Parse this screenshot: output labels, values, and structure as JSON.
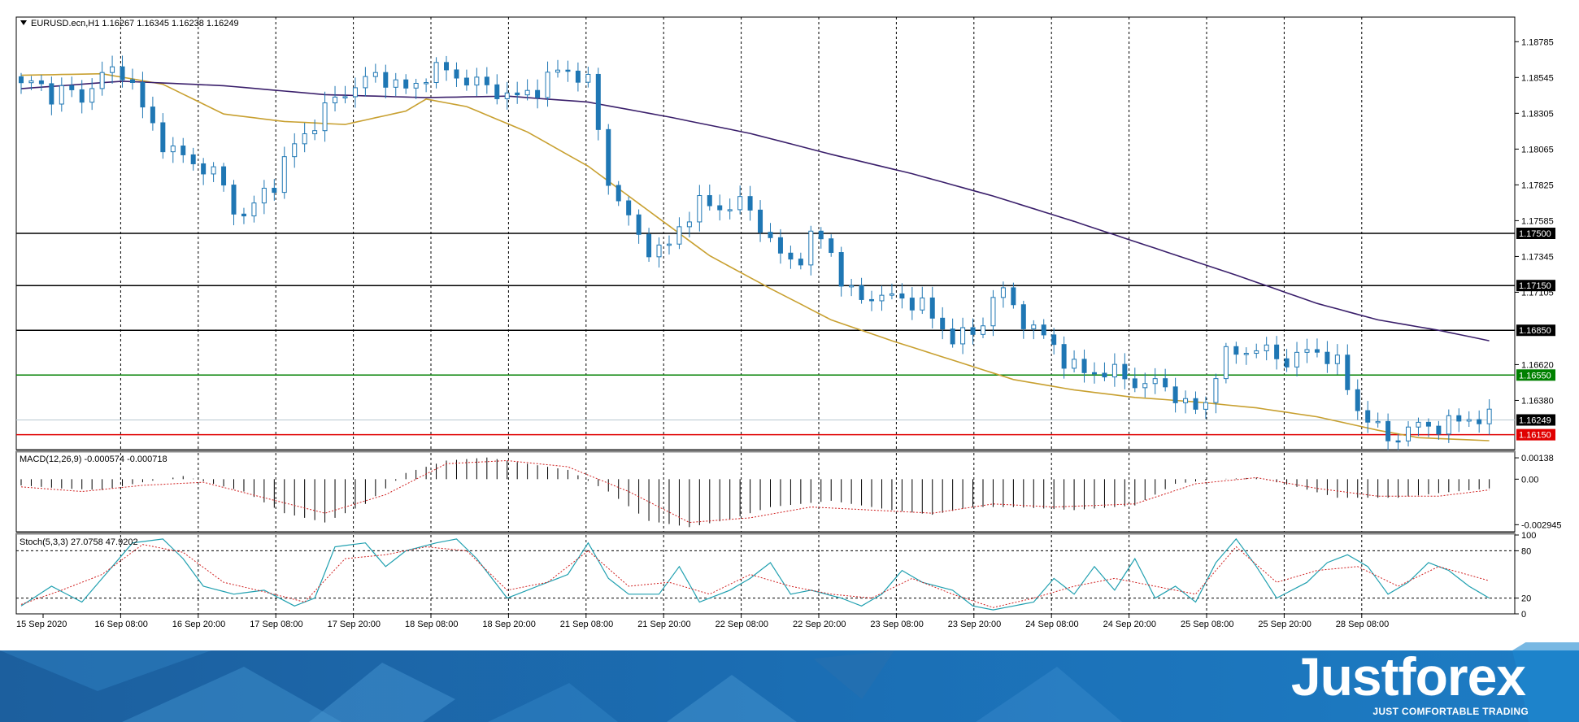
{
  "colors": {
    "bull": "#ffffff",
    "bear": "#1f77b4",
    "ma50": "#c8a030",
    "ma100": "#3a1f6b",
    "macd_hist": "#000000",
    "macd_signal": "#d02020",
    "stoch_main": "#20a0b0",
    "stoch_signal": "#d02020",
    "support_green": "#008000",
    "support_red": "#e00000",
    "brand_blue": "#1a6fb3"
  },
  "header": {
    "symbol_text": "EURUSD.ecn,H1  1.16267 1.16345 1.16238 1.16249",
    "menu_icon": "triangle-down-icon"
  },
  "macd_label": "MACD(12,26,9) -0.000574 -0.000718",
  "stoch_label": "Stoch(5,3,3) 27.0758 47.9202",
  "brand": {
    "name": "Justforex",
    "tagline": "JUST COMFORTABLE TRADING"
  },
  "chart_data": [
    {
      "type": "candlestick",
      "panel": "price",
      "ylim": [
        1.1605,
        1.1895
      ],
      "price_ticks": [
        "1.18785",
        "1.18545",
        "1.18305",
        "1.18065",
        "1.17825",
        "1.17585",
        "1.17345",
        "1.17105",
        "1.16620",
        "1.16380"
      ],
      "x_labels": [
        "15 Sep 2020",
        "16 Sep 08:00",
        "16 Sep 20:00",
        "17 Sep 08:00",
        "17 Sep 20:00",
        "18 Sep 08:00",
        "18 Sep 20:00",
        "21 Sep 08:00",
        "21 Sep 20:00",
        "22 Sep 08:00",
        "22 Sep 20:00",
        "23 Sep 08:00",
        "23 Sep 20:00",
        "24 Sep 08:00",
        "24 Sep 20:00",
        "25 Sep 08:00",
        "25 Sep 20:00",
        "28 Sep 08:00"
      ],
      "close_anchors": [
        1.1848,
        1.1852,
        1.1843,
        1.1846,
        1.184,
        1.1853,
        1.1858,
        1.186,
        1.1835,
        1.1818,
        1.1805,
        1.18,
        1.1795,
        1.179,
        1.177,
        1.176,
        1.1775,
        1.1786,
        1.1806,
        1.1817,
        1.183,
        1.184,
        1.1848,
        1.1852,
        1.1857,
        1.185,
        1.1844,
        1.1858,
        1.186,
        1.1856,
        1.1852,
        1.1848,
        1.1845,
        1.184,
        1.1845,
        1.1852,
        1.186,
        1.1858,
        1.185,
        1.179,
        1.177,
        1.175,
        1.174,
        1.1737,
        1.1755,
        1.177,
        1.1768,
        1.1768,
        1.177,
        1.1762,
        1.1745,
        1.173,
        1.1735,
        1.175,
        1.174,
        1.1712,
        1.1705,
        1.171,
        1.1706,
        1.1706,
        1.1704,
        1.169,
        1.1682,
        1.168,
        1.1685,
        1.1712,
        1.1706,
        1.169,
        1.1682,
        1.1675,
        1.166,
        1.1657,
        1.1658,
        1.1656,
        1.1652,
        1.1648,
        1.165,
        1.1643,
        1.163,
        1.1635,
        1.1665,
        1.167,
        1.1673,
        1.1671,
        1.1666,
        1.1665,
        1.1672,
        1.167,
        1.166,
        1.1635,
        1.1625,
        1.1612,
        1.1615,
        1.162,
        1.1622,
        1.162,
        1.1625,
        1.1627,
        1.1625
      ],
      "horizontal_levels": [
        {
          "value": 1.175,
          "label": "1.17500",
          "color": "#000000",
          "label_bg": "#000000"
        },
        {
          "value": 1.1715,
          "label": "1.17150",
          "color": "#000000",
          "label_bg": "#000000"
        },
        {
          "value": 1.1685,
          "label": "1.16850",
          "color": "#000000",
          "label_bg": "#000000"
        },
        {
          "value": 1.1655,
          "label": "1.16550",
          "color": "#008000",
          "label_bg": "#008000"
        },
        {
          "value": 1.16249,
          "label": "1.16249",
          "color": "#b8c8d0",
          "label_bg": "#000000"
        },
        {
          "value": 1.1615,
          "label": "1.16150",
          "color": "#e00000",
          "label_bg": "#e00000"
        }
      ],
      "ma50_anchors": [
        [
          0,
          1.1856
        ],
        [
          8,
          1.1857
        ],
        [
          14,
          1.185
        ],
        [
          20,
          1.183
        ],
        [
          26,
          1.1825
        ],
        [
          32,
          1.1823
        ],
        [
          38,
          1.1832
        ],
        [
          40,
          1.184
        ],
        [
          44,
          1.1835
        ],
        [
          50,
          1.1818
        ],
        [
          56,
          1.1795
        ],
        [
          62,
          1.1765
        ],
        [
          68,
          1.1735
        ],
        [
          74,
          1.1713
        ],
        [
          80,
          1.1692
        ],
        [
          86,
          1.1678
        ],
        [
          92,
          1.1665
        ],
        [
          98,
          1.1652
        ],
        [
          104,
          1.1645
        ],
        [
          110,
          1.164
        ],
        [
          116,
          1.1637
        ],
        [
          122,
          1.1633
        ],
        [
          128,
          1.1627
        ],
        [
          134,
          1.1618
        ],
        [
          138,
          1.1613
        ],
        [
          145,
          1.1611
        ]
      ],
      "ma100_anchors": [
        [
          0,
          1.1847
        ],
        [
          10,
          1.1852
        ],
        [
          20,
          1.1849
        ],
        [
          30,
          1.1843
        ],
        [
          40,
          1.1841
        ],
        [
          48,
          1.1842
        ],
        [
          56,
          1.1838
        ],
        [
          64,
          1.1828
        ],
        [
          72,
          1.1817
        ],
        [
          80,
          1.1803
        ],
        [
          88,
          1.179
        ],
        [
          96,
          1.1775
        ],
        [
          104,
          1.1758
        ],
        [
          112,
          1.174
        ],
        [
          120,
          1.1722
        ],
        [
          128,
          1.1703
        ],
        [
          134,
          1.1692
        ],
        [
          140,
          1.1685
        ],
        [
          145,
          1.1678
        ]
      ]
    },
    {
      "type": "bar",
      "panel": "macd",
      "name": "MACD(12,26,9)",
      "ylim": [
        -0.0034,
        0.0017
      ],
      "ticks": [
        "0.00138",
        "0.00",
        "-0.002945"
      ],
      "histogram_anchors": [
        [
          0,
          -0.0004
        ],
        [
          4,
          -0.0006
        ],
        [
          8,
          -0.0007
        ],
        [
          12,
          -0.0002
        ],
        [
          16,
          0.0002
        ],
        [
          22,
          -0.0008
        ],
        [
          26,
          -0.0022
        ],
        [
          30,
          -0.0028
        ],
        [
          34,
          -0.0016
        ],
        [
          38,
          0.0004
        ],
        [
          42,
          0.0012
        ],
        [
          46,
          0.0014
        ],
        [
          50,
          0.001
        ],
        [
          54,
          0.0006
        ],
        [
          58,
          -0.0008
        ],
        [
          62,
          -0.0027
        ],
        [
          66,
          -0.0031
        ],
        [
          70,
          -0.0026
        ],
        [
          74,
          -0.0018
        ],
        [
          80,
          -0.0014
        ],
        [
          86,
          -0.002
        ],
        [
          90,
          -0.0023
        ],
        [
          94,
          -0.0018
        ],
        [
          98,
          -0.0018
        ],
        [
          104,
          -0.002
        ],
        [
          110,
          -0.0017
        ],
        [
          114,
          -0.0003
        ],
        [
          118,
          0.0
        ],
        [
          122,
          0.0001
        ],
        [
          126,
          -0.0005
        ],
        [
          130,
          -0.0012
        ],
        [
          136,
          -0.0012
        ],
        [
          140,
          -0.0009
        ],
        [
          145,
          -0.0006
        ]
      ],
      "signal_anchors": [
        [
          0,
          -0.0005
        ],
        [
          6,
          -0.0008
        ],
        [
          12,
          -0.0004
        ],
        [
          18,
          -0.0002
        ],
        [
          24,
          -0.0012
        ],
        [
          30,
          -0.0022
        ],
        [
          36,
          -0.001
        ],
        [
          42,
          0.001
        ],
        [
          48,
          0.0012
        ],
        [
          54,
          0.0008
        ],
        [
          60,
          -0.0008
        ],
        [
          66,
          -0.0028
        ],
        [
          72,
          -0.0025
        ],
        [
          78,
          -0.0018
        ],
        [
          84,
          -0.002
        ],
        [
          90,
          -0.0022
        ],
        [
          96,
          -0.0016
        ],
        [
          102,
          -0.0018
        ],
        [
          110,
          -0.0016
        ],
        [
          116,
          -0.0003
        ],
        [
          122,
          0.0001
        ],
        [
          128,
          -0.0006
        ],
        [
          134,
          -0.0011
        ],
        [
          140,
          -0.0011
        ],
        [
          145,
          -0.0007
        ]
      ]
    },
    {
      "type": "line",
      "panel": "stochastic",
      "name": "Stoch(5,3,3)",
      "ylim": [
        0,
        100
      ],
      "ticks": [
        "100",
        "80",
        "20",
        "0"
      ],
      "levels": [
        80,
        20
      ],
      "main_anchors": [
        [
          0,
          10
        ],
        [
          3,
          35
        ],
        [
          6,
          15
        ],
        [
          9,
          60
        ],
        [
          11,
          90
        ],
        [
          14,
          95
        ],
        [
          16,
          70
        ],
        [
          18,
          35
        ],
        [
          21,
          25
        ],
        [
          24,
          30
        ],
        [
          27,
          10
        ],
        [
          29,
          20
        ],
        [
          31,
          85
        ],
        [
          34,
          90
        ],
        [
          36,
          60
        ],
        [
          38,
          80
        ],
        [
          41,
          90
        ],
        [
          43,
          95
        ],
        [
          45,
          70
        ],
        [
          48,
          20
        ],
        [
          51,
          35
        ],
        [
          54,
          50
        ],
        [
          56,
          90
        ],
        [
          58,
          45
        ],
        [
          60,
          25
        ],
        [
          63,
          25
        ],
        [
          65,
          60
        ],
        [
          67,
          15
        ],
        [
          70,
          30
        ],
        [
          72,
          45
        ],
        [
          74,
          65
        ],
        [
          76,
          25
        ],
        [
          78,
          30
        ],
        [
          81,
          20
        ],
        [
          83,
          10
        ],
        [
          85,
          25
        ],
        [
          87,
          55
        ],
        [
          89,
          40
        ],
        [
          92,
          30
        ],
        [
          94,
          10
        ],
        [
          96,
          5
        ],
        [
          98,
          10
        ],
        [
          100,
          15
        ],
        [
          102,
          45
        ],
        [
          104,
          25
        ],
        [
          106,
          60
        ],
        [
          108,
          30
        ],
        [
          110,
          70
        ],
        [
          112,
          20
        ],
        [
          114,
          35
        ],
        [
          116,
          15
        ],
        [
          118,
          65
        ],
        [
          120,
          95
        ],
        [
          122,
          60
        ],
        [
          124,
          20
        ],
        [
          127,
          40
        ],
        [
          129,
          65
        ],
        [
          131,
          75
        ],
        [
          133,
          60
        ],
        [
          135,
          25
        ],
        [
          137,
          40
        ],
        [
          139,
          65
        ],
        [
          141,
          55
        ],
        [
          143,
          35
        ],
        [
          145,
          20
        ]
      ],
      "signal_anchors": [
        [
          0,
          12
        ],
        [
          4,
          30
        ],
        [
          8,
          50
        ],
        [
          12,
          88
        ],
        [
          16,
          78
        ],
        [
          20,
          40
        ],
        [
          24,
          28
        ],
        [
          28,
          15
        ],
        [
          32,
          70
        ],
        [
          36,
          75
        ],
        [
          40,
          85
        ],
        [
          44,
          80
        ],
        [
          48,
          30
        ],
        [
          52,
          40
        ],
        [
          56,
          80
        ],
        [
          60,
          35
        ],
        [
          64,
          40
        ],
        [
          68,
          25
        ],
        [
          72,
          50
        ],
        [
          76,
          35
        ],
        [
          80,
          25
        ],
        [
          84,
          20
        ],
        [
          88,
          45
        ],
        [
          92,
          25
        ],
        [
          96,
          8
        ],
        [
          100,
          20
        ],
        [
          104,
          35
        ],
        [
          108,
          45
        ],
        [
          112,
          35
        ],
        [
          116,
          25
        ],
        [
          120,
          85
        ],
        [
          124,
          40
        ],
        [
          128,
          55
        ],
        [
          132,
          60
        ],
        [
          136,
          35
        ],
        [
          140,
          60
        ],
        [
          145,
          42
        ]
      ]
    }
  ]
}
